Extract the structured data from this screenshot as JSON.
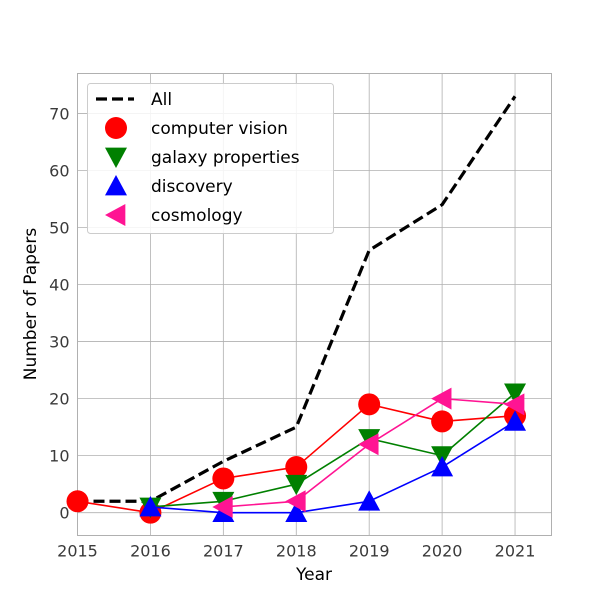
{
  "chart_data": {
    "type": "line",
    "xlabel": "Year",
    "ylabel": "Number of Papers",
    "xlim": [
      2015,
      2021.5
    ],
    "ylim": [
      -4,
      77
    ],
    "xticks": [
      "2015",
      "2016",
      "2017",
      "2018",
      "2019",
      "2020",
      "2021"
    ],
    "yticks": [
      "0",
      "10",
      "20",
      "30",
      "40",
      "50",
      "60",
      "70"
    ],
    "grid": true,
    "legend_position": "top-left",
    "series": [
      {
        "name": "All",
        "style": "dashed-line",
        "marker": "none",
        "color": "#000000",
        "x": [
          2015,
          2016,
          2017,
          2018,
          2019,
          2020,
          2021
        ],
        "y": [
          2,
          2,
          9,
          15,
          46,
          54,
          73
        ]
      },
      {
        "name": "computer vision",
        "style": "line",
        "marker": "circle",
        "color": "#ff0000",
        "x": [
          2015,
          2016,
          2017,
          2018,
          2019,
          2020,
          2021
        ],
        "y": [
          2,
          0,
          6,
          8,
          19,
          16,
          17
        ]
      },
      {
        "name": "galaxy properties",
        "style": "line",
        "marker": "triangle-down",
        "color": "#008000",
        "x": [
          2016,
          2017,
          2018,
          2019,
          2020,
          2021
        ],
        "y": [
          1,
          2,
          5,
          13,
          10,
          21
        ]
      },
      {
        "name": "discovery",
        "style": "line",
        "marker": "triangle-up",
        "color": "#0000ff",
        "x": [
          2016,
          2017,
          2018,
          2019,
          2020,
          2021
        ],
        "y": [
          1,
          0,
          0,
          2,
          8,
          16
        ]
      },
      {
        "name": "cosmology",
        "style": "line",
        "marker": "triangle-left",
        "color": "#ff1493",
        "x": [
          2017,
          2018,
          2019,
          2020,
          2021
        ],
        "y": [
          1,
          2,
          12,
          20,
          19
        ]
      }
    ]
  }
}
